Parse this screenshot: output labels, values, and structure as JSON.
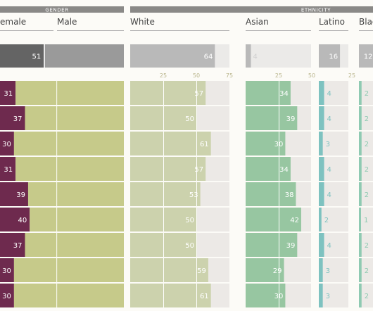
{
  "colors": {
    "female": "#6e2a4e",
    "male": "#c6ca8a",
    "white": "#ccd2ad",
    "asian": "#97c6a1",
    "latino": "#7ec2c0",
    "black": "#8fcab2",
    "track": "#ece9e6",
    "header_bar": "#8a8987",
    "summary_dark": "#646464",
    "summary_mid": "#9a9a9a",
    "summary_light": "#b9b9b9",
    "summary_track": "#d9d9d9",
    "tick_text": "#b9b58c"
  },
  "chart_data": {
    "type": "bar",
    "group_headers": [
      {
        "id": "gender",
        "label": "GENDER"
      },
      {
        "id": "ethnicity",
        "label": "ETHNICITY"
      }
    ],
    "columns": [
      {
        "id": "female",
        "label": "emale",
        "group": "gender"
      },
      {
        "id": "male",
        "label": "Male",
        "group": "gender"
      },
      {
        "id": "white",
        "label": "White",
        "group": "ethnicity",
        "ticks": [
          25,
          50,
          75
        ]
      },
      {
        "id": "asian",
        "label": "Asian",
        "group": "ethnicity",
        "ticks": [
          25,
          50
        ]
      },
      {
        "id": "latino",
        "label": "Latino",
        "group": "ethnicity",
        "ticks": [
          25
        ]
      },
      {
        "id": "black",
        "label": "Blac",
        "group": "ethnicity"
      }
    ],
    "summary": {
      "female": 49,
      "male": 51,
      "white": 64,
      "asian": 4,
      "latino": 16,
      "black": 12
    },
    "rows": [
      {
        "female": 31,
        "male": 69,
        "white": 57,
        "asian": 34,
        "latino": 4,
        "black": 2
      },
      {
        "female": 37,
        "male": 63,
        "white": 50,
        "asian": 39,
        "latino": 4,
        "black": 2
      },
      {
        "female": 30,
        "male": 70,
        "white": 61,
        "asian": 30,
        "latino": 3,
        "black": 2
      },
      {
        "female": 31,
        "male": 69,
        "white": 57,
        "asian": 34,
        "latino": 4,
        "black": 2
      },
      {
        "female": 39,
        "male": 61,
        "white": 53,
        "asian": 38,
        "latino": 4,
        "black": 2
      },
      {
        "female": 40,
        "male": 60,
        "white": 50,
        "asian": 42,
        "latino": 2,
        "black": 1
      },
      {
        "female": 37,
        "male": 63,
        "white": 50,
        "asian": 39,
        "latino": 4,
        "black": 2
      },
      {
        "female": 30,
        "male": 70,
        "white": 59,
        "asian": 29,
        "latino": 3,
        "black": 2
      },
      {
        "female": 30,
        "male": 70,
        "white": 61,
        "asian": 30,
        "latino": 3,
        "black": 2
      }
    ]
  }
}
